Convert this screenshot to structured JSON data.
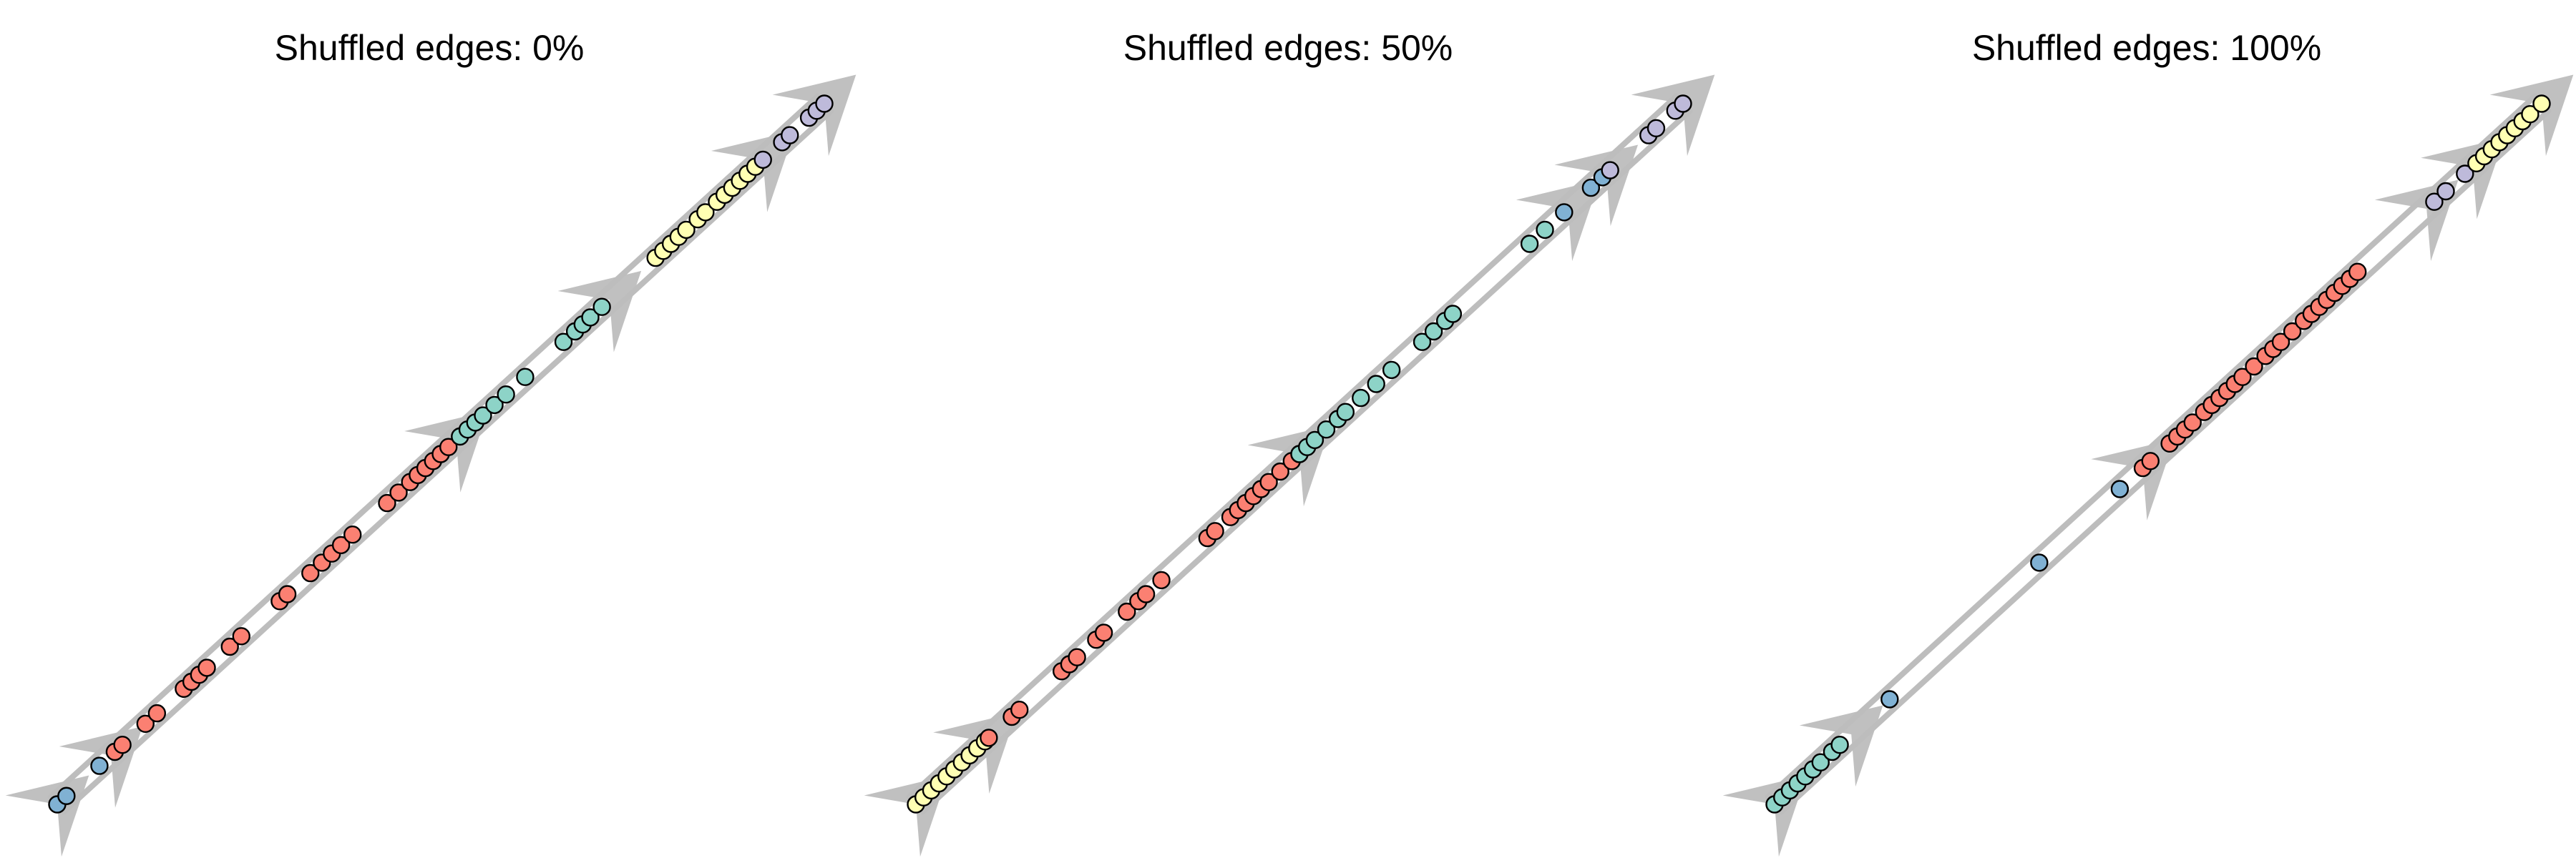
{
  "panels": [
    {
      "title": "Shuffled edges: 0%",
      "groups": [
        {
          "color": "#80b1d3",
          "span": [
            0.0,
            0.06
          ],
          "points": [
            0.0,
            0.012,
            0.055
          ]
        },
        {
          "color": "#fb8072",
          "span": [
            0.07,
            0.52
          ],
          "points": [
            0.075,
            0.085,
            0.115,
            0.13,
            0.165,
            0.175,
            0.185,
            0.195,
            0.225,
            0.24,
            0.29,
            0.3,
            0.33,
            0.345,
            0.358,
            0.37,
            0.385,
            0.43,
            0.445,
            0.46,
            0.47,
            0.48,
            0.49,
            0.5,
            0.51
          ]
        },
        {
          "color": "#8dd3c7",
          "span": [
            0.52,
            0.69
          ],
          "points": [
            0.525,
            0.535,
            0.545,
            0.555,
            0.57,
            0.585,
            0.61,
            0.66,
            0.675,
            0.685,
            0.695,
            0.71
          ]
        },
        {
          "color": "#ffffb3",
          "span": [
            0.72,
            0.9
          ],
          "points": [
            0.78,
            0.79,
            0.8,
            0.81,
            0.82,
            0.835,
            0.845,
            0.86,
            0.87,
            0.88,
            0.89,
            0.9,
            0.91
          ]
        },
        {
          "color": "#bebada",
          "span": [
            0.92,
            1.0
          ],
          "points": [
            0.92,
            0.945,
            0.955,
            0.98,
            0.99,
            1.0
          ]
        }
      ]
    },
    {
      "title": "Shuffled edges: 50%",
      "groups": [
        {
          "color": "#ffffb3",
          "span": [
            0.0,
            0.09
          ],
          "points": [
            0.0,
            0.01,
            0.02,
            0.03,
            0.04,
            0.05,
            0.06,
            0.07,
            0.08,
            0.09
          ]
        },
        {
          "color": "#fb8072",
          "span": [
            0.09,
            0.52
          ],
          "points": [
            0.095,
            0.125,
            0.135,
            0.19,
            0.2,
            0.21,
            0.235,
            0.245,
            0.275,
            0.29,
            0.3,
            0.32,
            0.38,
            0.39,
            0.41,
            0.42,
            0.43,
            0.44,
            0.45,
            0.46,
            0.475,
            0.49,
            0.5
          ]
        },
        {
          "color": "#8dd3c7",
          "span": [
            0.5,
            0.85
          ],
          "points": [
            0.5,
            0.51,
            0.52,
            0.535,
            0.55,
            0.56,
            0.58,
            0.6,
            0.62,
            0.66,
            0.675,
            0.69,
            0.7,
            0.8,
            0.82
          ]
        },
        {
          "color": "#80b1d3",
          "span": [
            0.85,
            0.9
          ],
          "points": [
            0.845,
            0.88,
            0.895
          ]
        },
        {
          "color": "#bebada",
          "span": [
            0.9,
            1.0
          ],
          "points": [
            0.905,
            0.955,
            0.965,
            0.99,
            1.0
          ]
        }
      ]
    },
    {
      "title": "Shuffled edges: 100%",
      "groups": [
        {
          "color": "#8dd3c7",
          "span": [
            0.0,
            0.1
          ],
          "points": [
            0.0,
            0.01,
            0.02,
            0.03,
            0.04,
            0.05,
            0.06,
            0.075,
            0.085
          ]
        },
        {
          "color": "#80b1d3",
          "span": [
            0.1,
            0.5
          ],
          "points": [
            0.15,
            0.345,
            0.45
          ]
        },
        {
          "color": "#fb8072",
          "span": [
            0.48,
            0.77
          ],
          "points": [
            0.48,
            0.49,
            0.515,
            0.525,
            0.535,
            0.545,
            0.56,
            0.57,
            0.58,
            0.59,
            0.6,
            0.61,
            0.625,
            0.64,
            0.65,
            0.66,
            0.675,
            0.69,
            0.7,
            0.71,
            0.72,
            0.73,
            0.74,
            0.75,
            0.76
          ]
        },
        {
          "color": "#bebada",
          "span": [
            0.85,
            0.91
          ],
          "points": [
            0.86,
            0.875,
            0.9
          ]
        },
        {
          "color": "#ffffb3",
          "span": [
            0.91,
            1.0
          ],
          "points": [
            0.915,
            0.925,
            0.935,
            0.945,
            0.955,
            0.965,
            0.975,
            0.985,
            1.0
          ]
        }
      ]
    }
  ]
}
